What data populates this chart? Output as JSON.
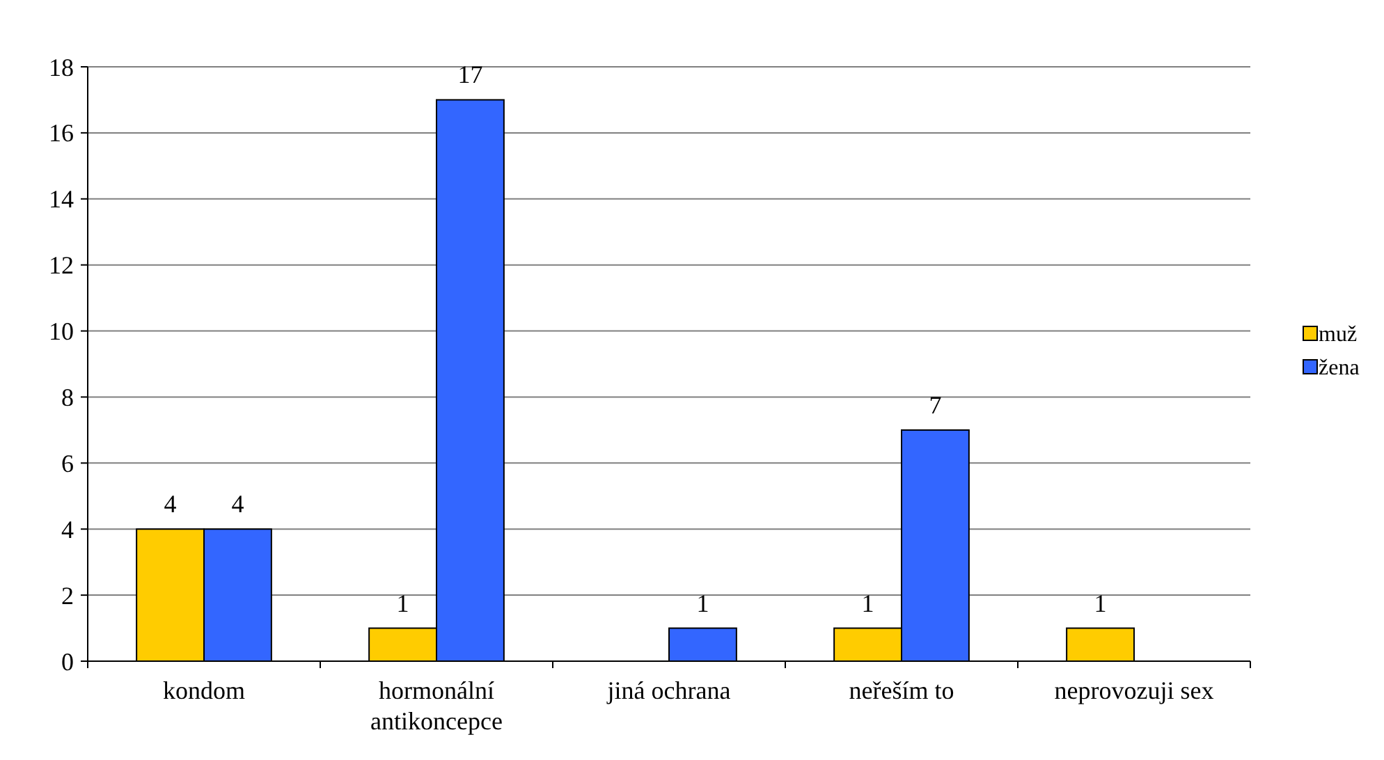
{
  "chart_data": {
    "type": "bar",
    "categories": [
      "kondom",
      "hormonální antikoncepce",
      "jiná ochrana",
      "neřeším to",
      "neprovozuji sex"
    ],
    "series": [
      {
        "name": "muž",
        "color": "#ffcc00",
        "values": [
          4,
          1,
          0,
          1,
          1
        ],
        "value_labels": [
          "4",
          "1",
          null,
          "1",
          "1"
        ]
      },
      {
        "name": "žena",
        "color": "#3366ff",
        "values": [
          4,
          17,
          1,
          7,
          0
        ],
        "value_labels": [
          "4",
          "17",
          "1",
          "7",
          null
        ]
      }
    ],
    "ylim": [
      0,
      18
    ],
    "yticks": [
      0,
      2,
      4,
      6,
      8,
      10,
      12,
      14,
      16,
      18
    ],
    "grid": "y",
    "legend": "right"
  }
}
